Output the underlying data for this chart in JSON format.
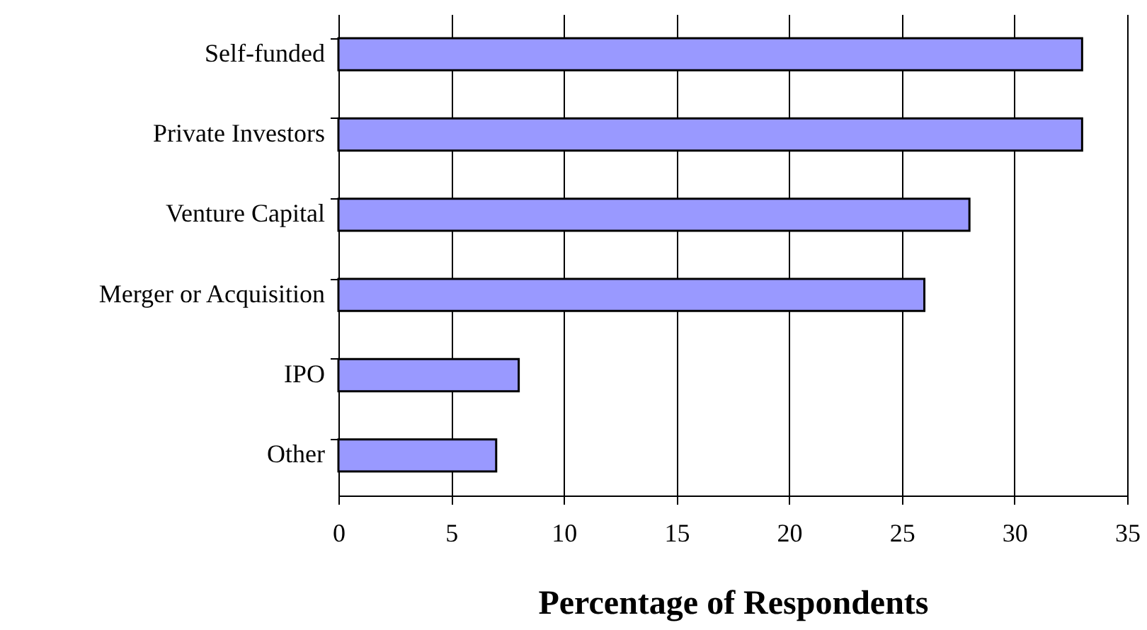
{
  "chart_data": {
    "type": "bar",
    "orientation": "horizontal",
    "xlabel": "Percentage of Respondents",
    "categories": [
      "Self-funded",
      "Private Investors",
      "Venture Capital",
      "Merger or Acquisition",
      "IPO",
      "Other"
    ],
    "values": [
      33,
      33,
      28,
      26,
      8,
      7
    ],
    "color": "#9999ff",
    "xlim": [
      0,
      35
    ],
    "xticks": [
      0,
      5,
      10,
      15,
      20,
      25,
      30,
      35
    ],
    "grid": "x"
  }
}
